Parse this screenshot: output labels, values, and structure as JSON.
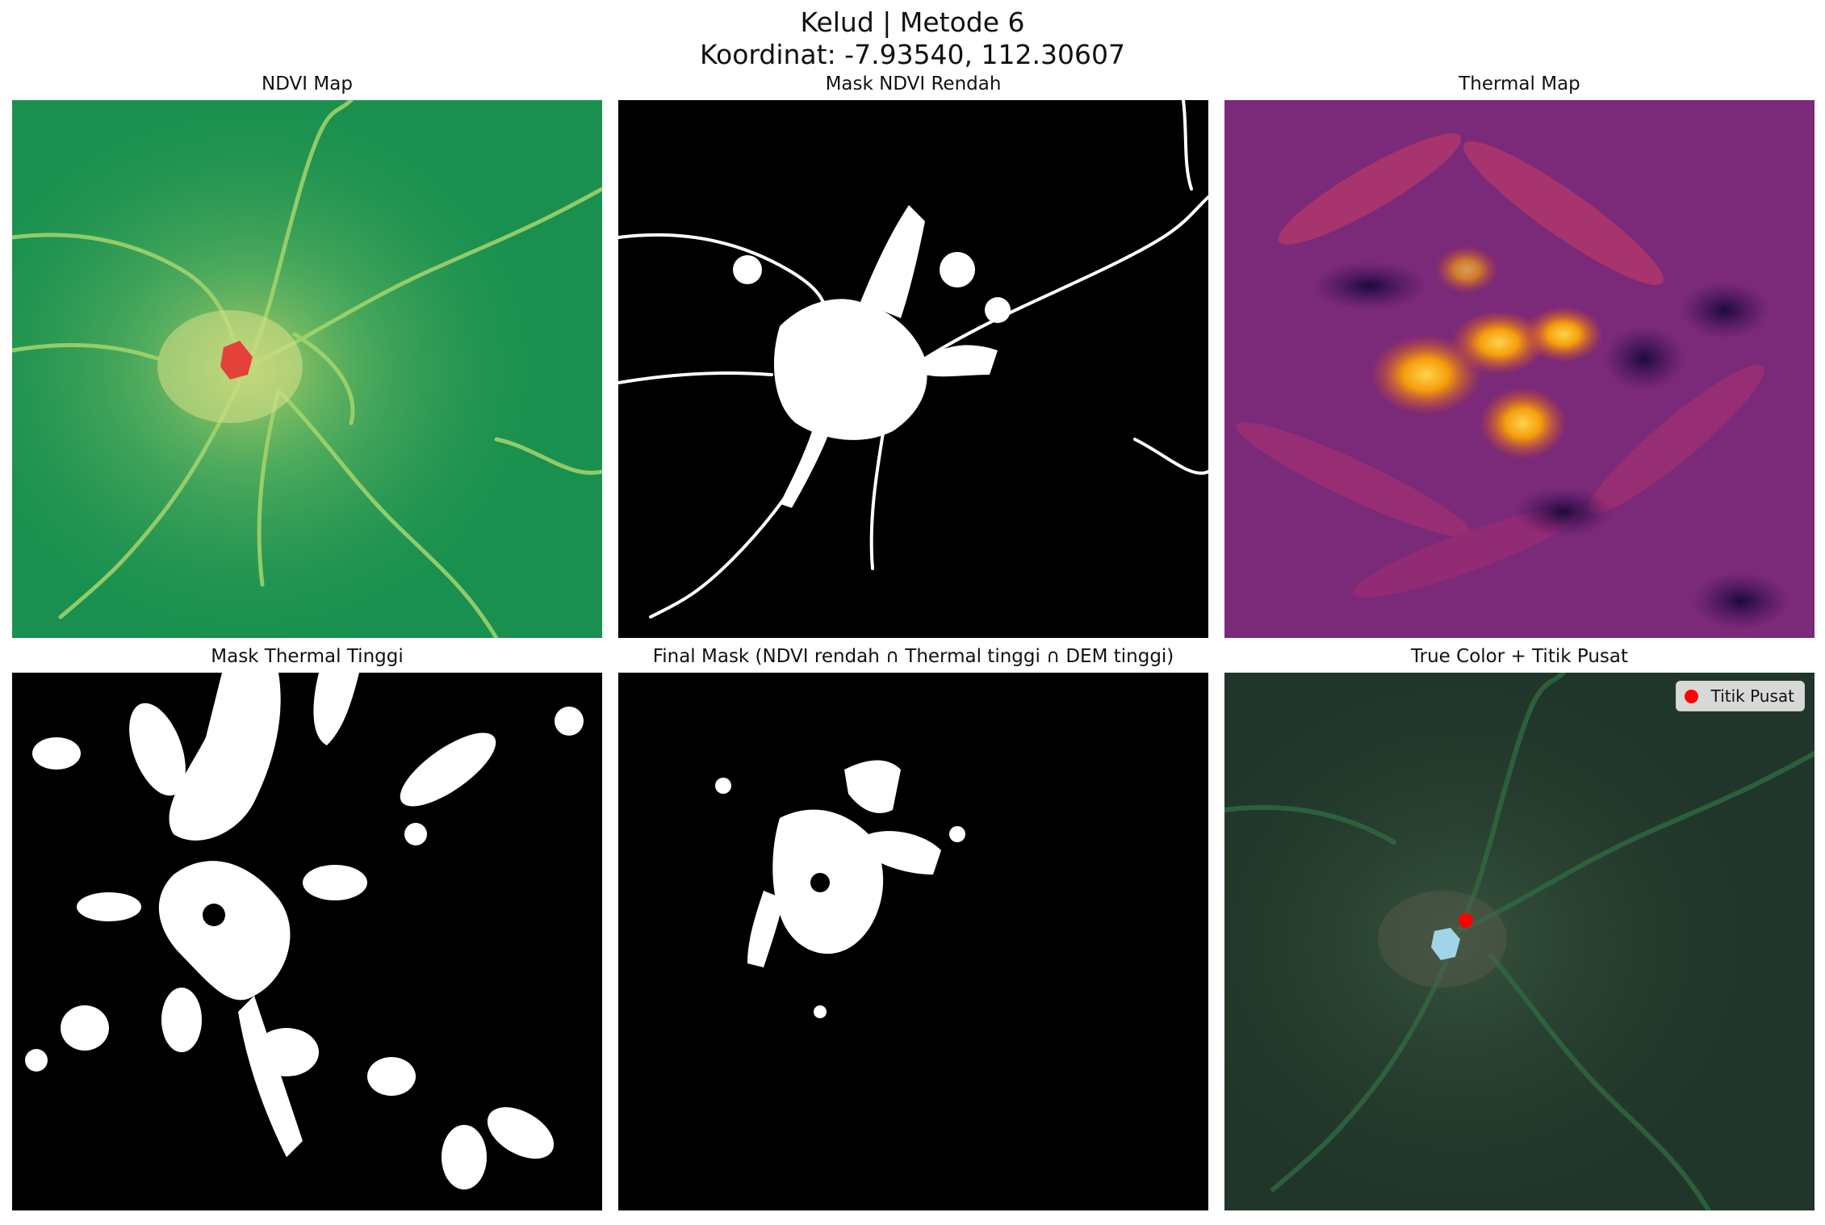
{
  "figure": {
    "title_line1": "Kelud | Metode 6",
    "title_line2": "Koordinat: -7.93540, 112.30607"
  },
  "panels": [
    {
      "title": "NDVI Map",
      "colormap": "RdYlGn"
    },
    {
      "title": "Mask NDVI Rendah",
      "colormap": "gray"
    },
    {
      "title": "Thermal Map",
      "colormap": "inferno"
    },
    {
      "title": "Mask Thermal Tinggi",
      "colormap": "gray"
    },
    {
      "title": "Final Mask (NDVI rendah ∩ Thermal tinggi ∩ DEM tinggi)",
      "colormap": "gray"
    },
    {
      "title": "True Color + Titik Pusat",
      "colormap": "rgb"
    }
  ],
  "legend": {
    "label": "Titik Pusat",
    "color": "#ff0000"
  },
  "colors": {
    "ndvi_base": "#19904f",
    "ndvi_low": "#e4413a",
    "mask_fg": "#ffffff",
    "mask_bg": "#000000",
    "thermal_base": "#7a2a78",
    "thermal_hot": "#f5a000",
    "truecolor_base": "#20362a",
    "crater_lake": "#9fd5e6",
    "center_point": "#ff0000"
  }
}
